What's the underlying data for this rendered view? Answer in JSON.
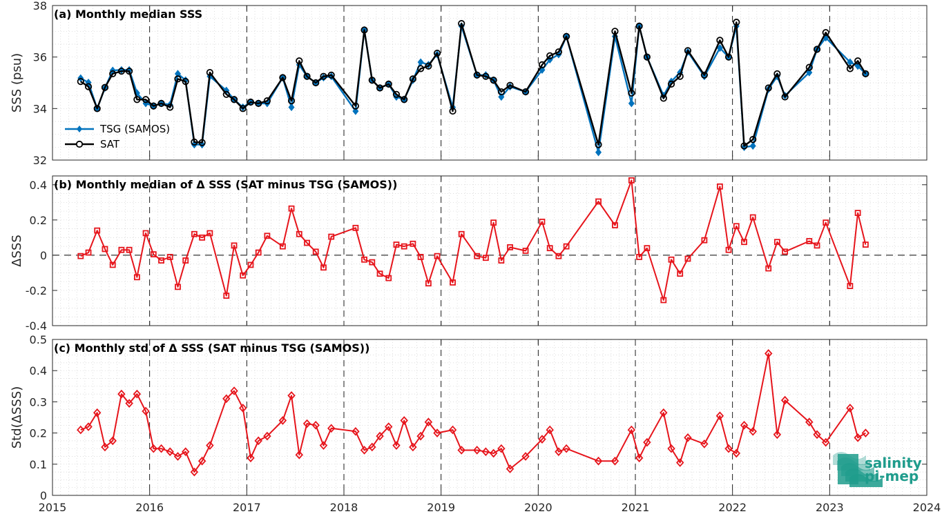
{
  "colors": {
    "tsg": "#0072BD",
    "sat": "#000000",
    "delta": "#e6141b",
    "logo": "#1f9c8c"
  },
  "logo": {
    "line1": "salinity",
    "line2": "pi-mep"
  },
  "chart_data": [
    {
      "type": "line",
      "title": "(a) Monthly median SSS",
      "ylabel": "SSS (psu)",
      "xlim": [
        2015,
        2024
      ],
      "ylim": [
        32,
        38
      ],
      "yticks": [
        32,
        34,
        36,
        38
      ],
      "xticks": [
        2015,
        2016,
        2017,
        2018,
        2019,
        2020,
        2021,
        2022,
        2023,
        2024
      ],
      "legend_position": "lower-left",
      "grid": true,
      "series": [
        {
          "name": "TSG (SAMOS)",
          "marker": "filled-diamond",
          "x": [
            2015.29,
            2015.37,
            2015.46,
            2015.54,
            2015.62,
            2015.71,
            2015.79,
            2015.87,
            2015.96,
            2016.04,
            2016.12,
            2016.21,
            2016.29,
            2016.37,
            2016.46,
            2016.54,
            2016.62,
            2016.79,
            2016.87,
            2016.96,
            2017.04,
            2017.12,
            2017.21,
            2017.37,
            2017.46,
            2017.54,
            2017.62,
            2017.71,
            2017.79,
            2017.87,
            2018.12,
            2018.21,
            2018.29,
            2018.37,
            2018.46,
            2018.54,
            2018.62,
            2018.71,
            2018.79,
            2018.87,
            2018.96,
            2019.12,
            2019.21,
            2019.37,
            2019.46,
            2019.54,
            2019.62,
            2019.71,
            2019.87,
            2020.04,
            2020.12,
            2020.21,
            2020.29,
            2020.62,
            2020.79,
            2020.96,
            2021.04,
            2021.12,
            2021.29,
            2021.37,
            2021.46,
            2021.54,
            2021.71,
            2021.87,
            2021.96,
            2022.04,
            2022.12,
            2022.21,
            2022.37,
            2022.46,
            2022.54,
            2022.79,
            2022.87,
            2022.96,
            2023.21,
            2023.29,
            2023.37
          ],
          "values": [
            35.18,
            35.01,
            34.0,
            34.8,
            35.48,
            35.5,
            35.5,
            34.6,
            34.2,
            34.1,
            34.2,
            34.15,
            35.35,
            35.1,
            32.6,
            32.6,
            35.25,
            34.7,
            34.35,
            34.05,
            34.25,
            34.2,
            34.2,
            35.2,
            34.05,
            35.7,
            35.25,
            35.0,
            35.2,
            35.25,
            33.9,
            37.05,
            35.1,
            34.8,
            34.95,
            34.45,
            34.35,
            35.1,
            35.8,
            35.7,
            36.1,
            34.05,
            37.2,
            35.3,
            35.3,
            35.1,
            34.45,
            34.85,
            34.65,
            35.5,
            35.9,
            36.1,
            36.8,
            32.3,
            36.8,
            34.2,
            37.2,
            36.0,
            34.5,
            35.05,
            35.4,
            36.2,
            35.25,
            36.35,
            36.0,
            37.2,
            32.5,
            32.55,
            34.75,
            35.25,
            34.5,
            35.4,
            36.3,
            36.75,
            35.8,
            35.65,
            35.35
          ]
        },
        {
          "name": "SAT",
          "marker": "open-circle",
          "x": [
            2015.29,
            2015.37,
            2015.46,
            2015.54,
            2015.62,
            2015.71,
            2015.79,
            2015.87,
            2015.96,
            2016.04,
            2016.12,
            2016.21,
            2016.29,
            2016.37,
            2016.46,
            2016.54,
            2016.62,
            2016.79,
            2016.87,
            2016.96,
            2017.04,
            2017.12,
            2017.21,
            2017.37,
            2017.46,
            2017.54,
            2017.62,
            2017.71,
            2017.79,
            2017.87,
            2018.12,
            2018.21,
            2018.29,
            2018.37,
            2018.46,
            2018.54,
            2018.62,
            2018.71,
            2018.79,
            2018.87,
            2018.96,
            2019.12,
            2019.21,
            2019.37,
            2019.46,
            2019.54,
            2019.62,
            2019.71,
            2019.87,
            2020.04,
            2020.12,
            2020.21,
            2020.29,
            2020.62,
            2020.79,
            2020.96,
            2021.04,
            2021.12,
            2021.29,
            2021.37,
            2021.46,
            2021.54,
            2021.71,
            2021.87,
            2021.96,
            2022.04,
            2022.12,
            2022.21,
            2022.37,
            2022.46,
            2022.54,
            2022.79,
            2022.87,
            2022.96,
            2023.21,
            2023.29,
            2023.37
          ],
          "values": [
            35.05,
            34.85,
            34.0,
            34.82,
            35.35,
            35.45,
            35.45,
            34.35,
            34.35,
            34.1,
            34.2,
            34.05,
            35.15,
            35.05,
            32.7,
            32.68,
            35.4,
            34.55,
            34.35,
            34.0,
            34.25,
            34.2,
            34.3,
            35.2,
            34.3,
            35.85,
            35.25,
            35.0,
            35.25,
            35.3,
            34.1,
            37.05,
            35.1,
            34.8,
            34.95,
            34.55,
            34.35,
            35.15,
            35.55,
            35.65,
            36.15,
            33.9,
            37.3,
            35.3,
            35.25,
            35.1,
            34.65,
            34.9,
            34.65,
            35.7,
            36.05,
            36.2,
            36.8,
            32.6,
            37.0,
            34.6,
            37.2,
            36.0,
            34.4,
            34.95,
            35.25,
            36.25,
            35.3,
            36.65,
            36.0,
            37.35,
            32.55,
            32.8,
            34.8,
            35.35,
            34.45,
            35.6,
            36.3,
            36.95,
            35.55,
            35.85,
            35.35
          ]
        }
      ]
    },
    {
      "type": "line",
      "title": "(b) Monthly median of Δ SSS (SAT minus TSG (SAMOS))",
      "ylabel": "ΔSSS",
      "xlim": [
        2015,
        2024
      ],
      "ylim": [
        -0.4,
        0.45
      ],
      "yticks": [
        -0.4,
        -0.2,
        0,
        0.2,
        0.4
      ],
      "ytick_labels": [
        "-0.4",
        "-0.2",
        "0",
        "0.2",
        "0.4"
      ],
      "xticks": [
        2015,
        2016,
        2017,
        2018,
        2019,
        2020,
        2021,
        2022,
        2023,
        2024
      ],
      "zero_line": true,
      "grid": true,
      "series": [
        {
          "name": "",
          "marker": "open-square",
          "x": [
            2015.29,
            2015.37,
            2015.46,
            2015.54,
            2015.62,
            2015.71,
            2015.79,
            2015.87,
            2015.96,
            2016.04,
            2016.12,
            2016.21,
            2016.29,
            2016.37,
            2016.46,
            2016.54,
            2016.62,
            2016.79,
            2016.87,
            2016.96,
            2017.04,
            2017.12,
            2017.21,
            2017.37,
            2017.46,
            2017.54,
            2017.62,
            2017.71,
            2017.79,
            2017.87,
            2018.12,
            2018.21,
            2018.29,
            2018.37,
            2018.46,
            2018.54,
            2018.62,
            2018.71,
            2018.79,
            2018.87,
            2018.96,
            2019.12,
            2019.21,
            2019.37,
            2019.46,
            2019.54,
            2019.62,
            2019.71,
            2019.87,
            2020.04,
            2020.12,
            2020.21,
            2020.29,
            2020.62,
            2020.79,
            2020.96,
            2021.04,
            2021.12,
            2021.29,
            2021.37,
            2021.46,
            2021.54,
            2021.71,
            2021.87,
            2021.96,
            2022.04,
            2022.12,
            2022.21,
            2022.37,
            2022.46,
            2022.54,
            2022.79,
            2022.87,
            2022.96,
            2023.21,
            2023.29,
            2023.37
          ],
          "values": [
            -0.005,
            0.015,
            0.14,
            0.035,
            -0.055,
            0.03,
            0.03,
            -0.125,
            0.125,
            0.005,
            -0.03,
            -0.01,
            -0.18,
            -0.03,
            0.12,
            0.1,
            0.125,
            -0.23,
            0.055,
            -0.115,
            -0.055,
            0.015,
            0.11,
            0.05,
            0.265,
            0.12,
            0.07,
            0.02,
            -0.07,
            0.105,
            0.155,
            -0.025,
            -0.04,
            -0.105,
            -0.13,
            0.06,
            0.05,
            0.065,
            -0.01,
            -0.16,
            -0.005,
            -0.155,
            0.12,
            -0.005,
            -0.015,
            0.185,
            -0.03,
            0.045,
            0.025,
            0.19,
            0.04,
            -0.005,
            0.05,
            0.305,
            0.17,
            0.425,
            -0.01,
            0.04,
            -0.255,
            -0.025,
            -0.105,
            -0.02,
            0.085,
            0.39,
            0.03,
            0.165,
            0.075,
            0.215,
            -0.075,
            0.075,
            0.02,
            0.08,
            0.055,
            0.185,
            -0.175,
            0.24,
            0.06
          ]
        }
      ]
    },
    {
      "type": "line",
      "title": "(c) Monthly std of Δ SSS (SAT minus TSG (SAMOS))",
      "ylabel": "Std(ΔSSS)",
      "xlim": [
        2015,
        2024
      ],
      "ylim": [
        0,
        0.5
      ],
      "yticks": [
        0,
        0.1,
        0.2,
        0.3,
        0.4,
        0.5
      ],
      "ytick_labels": [
        "0",
        "0.1",
        "0.2",
        "0.3",
        "0.4",
        "0.5"
      ],
      "xticks": [
        2015,
        2016,
        2017,
        2018,
        2019,
        2020,
        2021,
        2022,
        2023,
        2024
      ],
      "grid": true,
      "series": [
        {
          "name": "",
          "marker": "open-diamond",
          "x": [
            2015.29,
            2015.37,
            2015.46,
            2015.54,
            2015.62,
            2015.71,
            2015.79,
            2015.87,
            2015.96,
            2016.04,
            2016.12,
            2016.21,
            2016.29,
            2016.37,
            2016.46,
            2016.54,
            2016.62,
            2016.79,
            2016.87,
            2016.96,
            2017.04,
            2017.12,
            2017.21,
            2017.37,
            2017.46,
            2017.54,
            2017.62,
            2017.71,
            2017.79,
            2017.87,
            2018.12,
            2018.21,
            2018.29,
            2018.37,
            2018.46,
            2018.54,
            2018.62,
            2018.71,
            2018.79,
            2018.87,
            2018.96,
            2019.12,
            2019.21,
            2019.37,
            2019.46,
            2019.54,
            2019.62,
            2019.71,
            2019.87,
            2020.04,
            2020.12,
            2020.21,
            2020.29,
            2020.62,
            2020.79,
            2020.96,
            2021.04,
            2021.12,
            2021.29,
            2021.37,
            2021.46,
            2021.54,
            2021.71,
            2021.87,
            2021.96,
            2022.04,
            2022.12,
            2022.21,
            2022.37,
            2022.46,
            2022.54,
            2022.79,
            2022.87,
            2022.96,
            2023.21,
            2023.29,
            2023.37
          ],
          "values": [
            0.21,
            0.22,
            0.265,
            0.155,
            0.175,
            0.325,
            0.295,
            0.325,
            0.27,
            0.15,
            0.15,
            0.14,
            0.125,
            0.14,
            0.075,
            0.11,
            0.16,
            0.31,
            0.335,
            0.28,
            0.12,
            0.175,
            0.19,
            0.24,
            0.32,
            0.13,
            0.23,
            0.225,
            0.16,
            0.215,
            0.205,
            0.145,
            0.155,
            0.19,
            0.22,
            0.16,
            0.24,
            0.155,
            0.19,
            0.235,
            0.2,
            0.21,
            0.145,
            0.145,
            0.14,
            0.135,
            0.15,
            0.085,
            0.125,
            0.18,
            0.21,
            0.14,
            0.15,
            0.11,
            0.11,
            0.21,
            0.12,
            0.17,
            0.265,
            0.15,
            0.105,
            0.185,
            0.165,
            0.255,
            0.15,
            0.135,
            0.225,
            0.205,
            0.455,
            0.195,
            0.305,
            0.235,
            0.195,
            0.17,
            0.28,
            0.185,
            0.2
          ]
        }
      ]
    }
  ]
}
